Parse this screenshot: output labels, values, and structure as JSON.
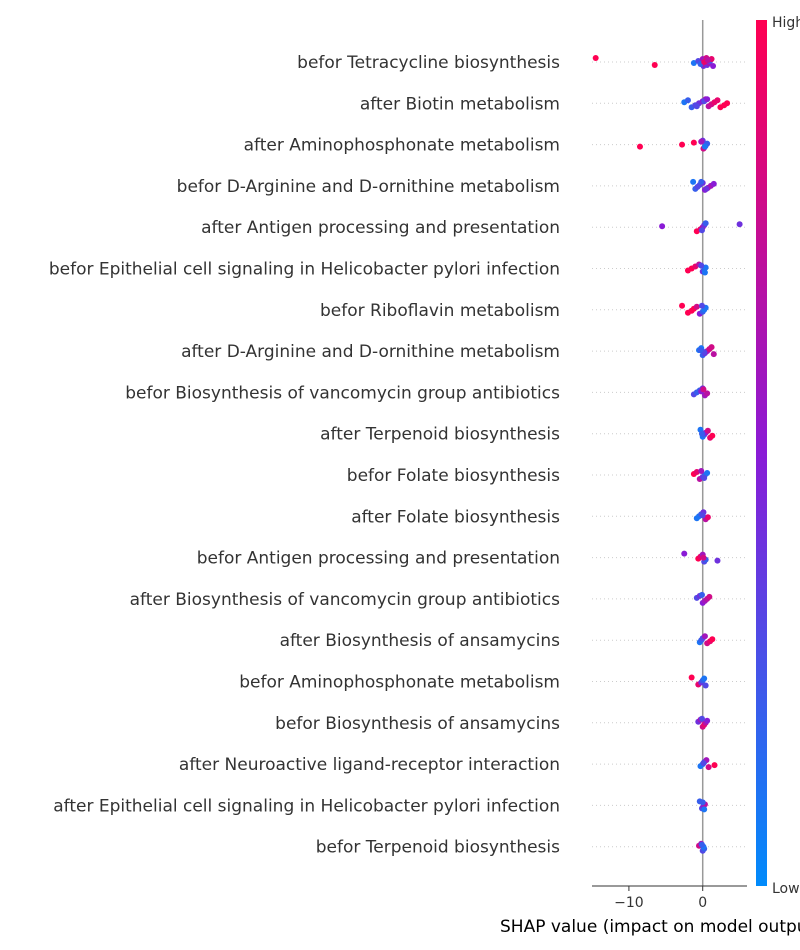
{
  "chart_data": {
    "type": "scatter",
    "subtype": "shap-beeswarm",
    "title": "",
    "xlabel": "SHAP value (impact on model output)",
    "ylabel": "",
    "xlim": [
      -15,
      6
    ],
    "xticks": [
      -10,
      0
    ],
    "xtick_labels": [
      "−10",
      "0"
    ],
    "grid": false,
    "colorbar": {
      "high_label": "High",
      "low_label": "Low",
      "color_high": "#ff0052",
      "color_mid": "#8a1bd6",
      "color_low": "#008bfb"
    },
    "features": [
      {
        "name": "befor Tetracycline biosynthesis",
        "points": [
          [
            -14.5,
            1
          ],
          [
            -6.5,
            1
          ],
          [
            -1.2,
            0.1
          ],
          [
            -0.6,
            0.3
          ],
          [
            0.0,
            0.6
          ],
          [
            0.1,
            0.4
          ],
          [
            0.2,
            0.7
          ],
          [
            0.3,
            0.5
          ],
          [
            0.4,
            0.2
          ],
          [
            0.5,
            0.8
          ],
          [
            0.6,
            0.4
          ],
          [
            0.8,
            0.6
          ],
          [
            1.0,
            0.3
          ],
          [
            1.2,
            0.9
          ],
          [
            1.4,
            0.5
          ],
          [
            -0.3,
            0.2
          ],
          [
            0.2,
            0.9
          ],
          [
            0.7,
            0.7
          ]
        ]
      },
      {
        "name": "after Biotin metabolism",
        "points": [
          [
            -2.5,
            0.1
          ],
          [
            -2.0,
            0.2
          ],
          [
            -1.5,
            0.2
          ],
          [
            -1.0,
            0.3
          ],
          [
            -0.5,
            0.4
          ],
          [
            0.0,
            0.5
          ],
          [
            0.4,
            0.6
          ],
          [
            0.8,
            0.7
          ],
          [
            1.2,
            0.8
          ],
          [
            1.6,
            0.9
          ],
          [
            2.0,
            0.9
          ],
          [
            2.4,
            1
          ],
          [
            2.9,
            1
          ],
          [
            3.3,
            1
          ],
          [
            0.2,
            0.3
          ],
          [
            0.6,
            0.5
          ],
          [
            -0.8,
            0.3
          ]
        ]
      },
      {
        "name": "after Aminophosphonate metabolism",
        "points": [
          [
            -8.5,
            1
          ],
          [
            -2.8,
            1
          ],
          [
            -1.2,
            1
          ],
          [
            0.0,
            0.4
          ],
          [
            0.2,
            0.5
          ],
          [
            0.4,
            0.3
          ],
          [
            0.6,
            0.2
          ],
          [
            -0.2,
            0.6
          ],
          [
            0.1,
            0.8
          ],
          [
            0.3,
            0.1
          ]
        ]
      },
      {
        "name": "befor D-Arginine and D-ornithine metabolism",
        "points": [
          [
            -1.3,
            0.1
          ],
          [
            -1.0,
            0.2
          ],
          [
            -0.7,
            0.3
          ],
          [
            -0.4,
            0.3
          ],
          [
            0.0,
            0.4
          ],
          [
            0.3,
            0.5
          ],
          [
            0.7,
            0.6
          ],
          [
            1.1,
            0.6
          ],
          [
            1.5,
            0.5
          ],
          [
            -0.2,
            0.2
          ],
          [
            0.5,
            0.4
          ]
        ]
      },
      {
        "name": "after Antigen processing and presentation",
        "points": [
          [
            -5.5,
            0.5
          ],
          [
            5.0,
            0.4
          ],
          [
            -0.8,
            1
          ],
          [
            -0.3,
            0.9
          ],
          [
            0.0,
            0.7
          ],
          [
            0.2,
            0.4
          ],
          [
            0.4,
            0.2
          ],
          [
            -0.1,
            0.3
          ]
        ]
      },
      {
        "name": "befor Epithelial cell signaling in Helicobacter pylori infection",
        "points": [
          [
            -2.0,
            1
          ],
          [
            -1.5,
            1
          ],
          [
            -1.0,
            0.9
          ],
          [
            -0.5,
            0.7
          ],
          [
            0.0,
            0.4
          ],
          [
            0.2,
            0.2
          ],
          [
            0.4,
            0.1
          ],
          [
            -0.2,
            0.3
          ],
          [
            0.3,
            0.1
          ]
        ]
      },
      {
        "name": "befor Riboflavin metabolism",
        "points": [
          [
            -2.8,
            1
          ],
          [
            -2.0,
            1
          ],
          [
            -1.5,
            1
          ],
          [
            -1.2,
            1
          ],
          [
            -0.8,
            0.8
          ],
          [
            -0.4,
            0.5
          ],
          [
            0.0,
            0.2
          ],
          [
            0.2,
            0.1
          ],
          [
            0.4,
            0.1
          ],
          [
            -0.1,
            0.3
          ]
        ]
      },
      {
        "name": "after D-Arginine and D-ornithine metabolism",
        "points": [
          [
            -0.5,
            0.1
          ],
          [
            -0.2,
            0.1
          ],
          [
            0.0,
            0.2
          ],
          [
            0.3,
            0.4
          ],
          [
            0.6,
            0.6
          ],
          [
            0.9,
            0.8
          ],
          [
            1.2,
            0.8
          ],
          [
            1.5,
            0.7
          ],
          [
            0.2,
            0.3
          ],
          [
            -0.3,
            0.2
          ]
        ]
      },
      {
        "name": "befor Biosynthesis of vancomycin group antibiotics",
        "points": [
          [
            -1.2,
            0.3
          ],
          [
            -0.8,
            0.2
          ],
          [
            -0.4,
            0.2
          ],
          [
            0.0,
            0.4
          ],
          [
            0.3,
            0.6
          ],
          [
            0.6,
            0.7
          ],
          [
            -0.2,
            0.5
          ],
          [
            0.1,
            0.8
          ]
        ]
      },
      {
        "name": "after Terpenoid biosynthesis",
        "points": [
          [
            -0.3,
            0.1
          ],
          [
            0.0,
            0.1
          ],
          [
            0.2,
            0.2
          ],
          [
            0.4,
            0.5
          ],
          [
            0.7,
            0.8
          ],
          [
            1.0,
            0.9
          ],
          [
            1.3,
            1
          ],
          [
            -0.1,
            0.2
          ]
        ]
      },
      {
        "name": "befor Folate biosynthesis",
        "points": [
          [
            -1.2,
            1
          ],
          [
            -0.8,
            0.9
          ],
          [
            -0.4,
            0.7
          ],
          [
            0.0,
            0.4
          ],
          [
            0.3,
            0.2
          ],
          [
            0.6,
            0.1
          ],
          [
            -0.2,
            0.6
          ],
          [
            0.2,
            0.3
          ]
        ]
      },
      {
        "name": "after Folate biosynthesis",
        "points": [
          [
            -0.8,
            0.1
          ],
          [
            -0.5,
            0.1
          ],
          [
            -0.2,
            0.2
          ],
          [
            0.1,
            0.4
          ],
          [
            0.4,
            0.7
          ],
          [
            0.7,
            0.9
          ],
          [
            0.0,
            0.3
          ]
        ]
      },
      {
        "name": "befor Antigen processing and presentation",
        "points": [
          [
            -2.5,
            0.5
          ],
          [
            2.0,
            0.4
          ],
          [
            -0.6,
            1
          ],
          [
            -0.3,
            0.9
          ],
          [
            0.0,
            0.6
          ],
          [
            0.2,
            0.3
          ],
          [
            0.4,
            0.2
          ],
          [
            0.1,
            0.8
          ]
        ]
      },
      {
        "name": "after Biosynthesis of vancomycin group antibiotics",
        "points": [
          [
            -0.8,
            0.3
          ],
          [
            -0.4,
            0.4
          ],
          [
            0.0,
            0.5
          ],
          [
            0.3,
            0.6
          ],
          [
            0.6,
            0.7
          ],
          [
            0.9,
            0.8
          ],
          [
            -0.1,
            0.2
          ]
        ]
      },
      {
        "name": "after Biosynthesis of ansamycins",
        "points": [
          [
            -0.4,
            0.1
          ],
          [
            -0.2,
            0.2
          ],
          [
            0.0,
            0.3
          ],
          [
            0.3,
            0.6
          ],
          [
            0.6,
            0.8
          ],
          [
            1.0,
            0.9
          ],
          [
            1.3,
            1
          ]
        ]
      },
      {
        "name": "befor Aminophosphonate metabolism",
        "points": [
          [
            -1.5,
            1
          ],
          [
            -0.6,
            0.9
          ],
          [
            -0.2,
            0.4
          ],
          [
            0.0,
            0.2
          ],
          [
            0.2,
            0.1
          ],
          [
            0.4,
            0.3
          ]
        ]
      },
      {
        "name": "befor Biosynthesis of ansamycins",
        "points": [
          [
            -0.6,
            0.4
          ],
          [
            -0.3,
            0.6
          ],
          [
            0.0,
            0.8
          ],
          [
            0.2,
            0.9
          ],
          [
            0.4,
            0.7
          ],
          [
            0.6,
            0.5
          ],
          [
            -0.1,
            0.3
          ]
        ]
      },
      {
        "name": "after Neuroactive ligand-receptor interaction",
        "points": [
          [
            -0.3,
            0.1
          ],
          [
            0.0,
            0.1
          ],
          [
            0.2,
            0.2
          ],
          [
            0.5,
            0.6
          ],
          [
            0.8,
            0.8
          ],
          [
            1.6,
            1
          ],
          [
            0.1,
            0.3
          ]
        ]
      },
      {
        "name": "after Epithelial cell signaling in Helicobacter pylori infection",
        "points": [
          [
            -0.4,
            0.2
          ],
          [
            -0.1,
            0.3
          ],
          [
            0.1,
            0.5
          ],
          [
            0.3,
            0.7
          ],
          [
            0.0,
            0.2
          ],
          [
            0.2,
            0.1
          ]
        ]
      },
      {
        "name": "befor Terpenoid biosynthesis",
        "points": [
          [
            -0.5,
            0.8
          ],
          [
            -0.2,
            0.6
          ],
          [
            0.0,
            0.3
          ],
          [
            0.2,
            0.2
          ],
          [
            0.1,
            0.1
          ],
          [
            -0.1,
            0.2
          ]
        ]
      }
    ]
  }
}
